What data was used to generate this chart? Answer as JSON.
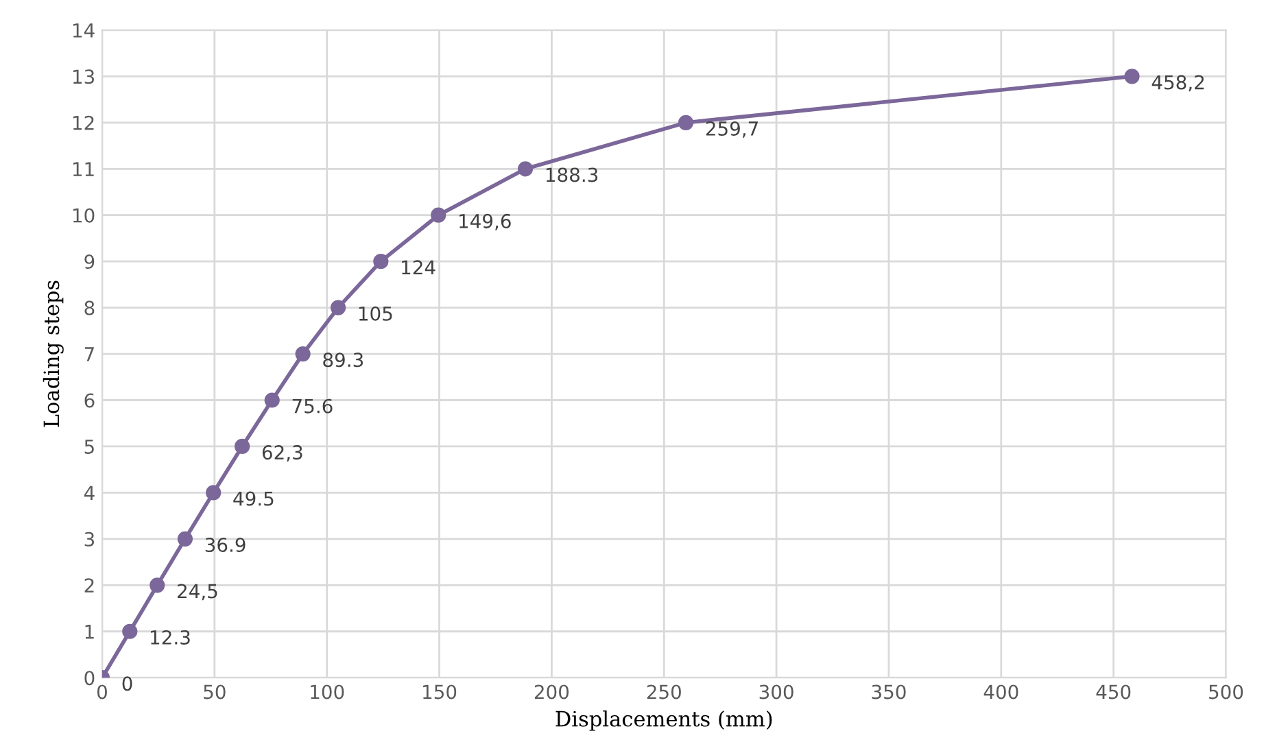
{
  "chart_data": {
    "type": "line",
    "xlabel": "Displacements (mm)",
    "ylabel": "Loading steps",
    "x": [
      0,
      12.3,
      24.5,
      36.9,
      49.5,
      62.3,
      75.6,
      89.3,
      105,
      124,
      149.6,
      188.3,
      259.7,
      458.2
    ],
    "series": [
      {
        "color": "#7b6799",
        "values": [
          0,
          1,
          2,
          3,
          4,
          5,
          6,
          7,
          8,
          9,
          10,
          11,
          12,
          13
        ]
      }
    ],
    "marker": "circle",
    "line_style": "solid",
    "grid": true,
    "legend": false,
    "xlim": [
      0,
      500
    ],
    "xticks": [
      0,
      50,
      100,
      150,
      200,
      250,
      300,
      350,
      400,
      450,
      500
    ],
    "ylim": [
      0,
      14
    ],
    "yticks": [
      0,
      1,
      2,
      3,
      4,
      5,
      6,
      7,
      8,
      9,
      10,
      11,
      12,
      13,
      14
    ],
    "annotations": [
      {
        "text": "0",
        "x": 0,
        "y": 0
      },
      {
        "text": "12.3",
        "x": 12.3,
        "y": 1
      },
      {
        "text": "24,5",
        "x": 24.5,
        "y": 2
      },
      {
        "text": "36.9",
        "x": 36.9,
        "y": 3
      },
      {
        "text": "49.5",
        "x": 49.5,
        "y": 4
      },
      {
        "text": "62,3",
        "x": 62.3,
        "y": 5
      },
      {
        "text": "75.6",
        "x": 75.6,
        "y": 6
      },
      {
        "text": "89.3",
        "x": 89.3,
        "y": 7
      },
      {
        "text": "105",
        "x": 105,
        "y": 8
      },
      {
        "text": "124",
        "x": 124,
        "y": 9
      },
      {
        "text": "149,6",
        "x": 149.6,
        "y": 10
      },
      {
        "text": "188.3",
        "x": 188.3,
        "y": 11
      },
      {
        "text": "259,7",
        "x": 259.7,
        "y": 12
      },
      {
        "text": "458,2",
        "x": 458.2,
        "y": 13
      }
    ]
  }
}
